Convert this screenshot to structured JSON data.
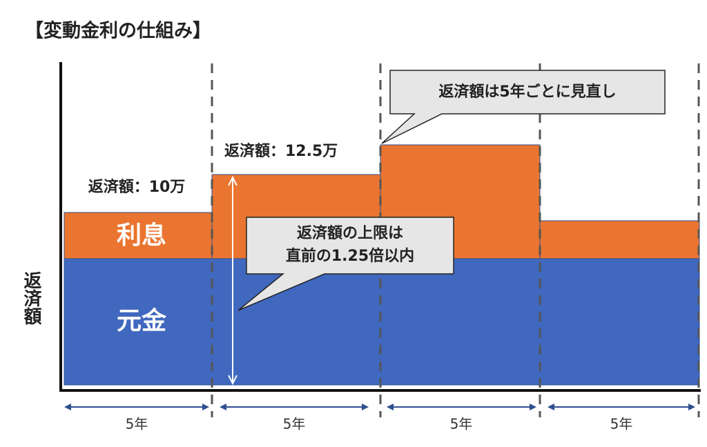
{
  "title": "【変動金利の仕組み】",
  "y_axis_label": "返済額",
  "segments": {
    "interest": "利息",
    "principal": "元金"
  },
  "payment_labels": [
    "返済額：10万",
    "返済額：12.5万"
  ],
  "callouts": {
    "review": "返済額は5年ごとに見直し",
    "cap": [
      "返済額の上限は",
      "直前の1.25倍以内"
    ]
  },
  "periods": [
    "5年",
    "5年",
    "5年",
    "5年"
  ]
}
